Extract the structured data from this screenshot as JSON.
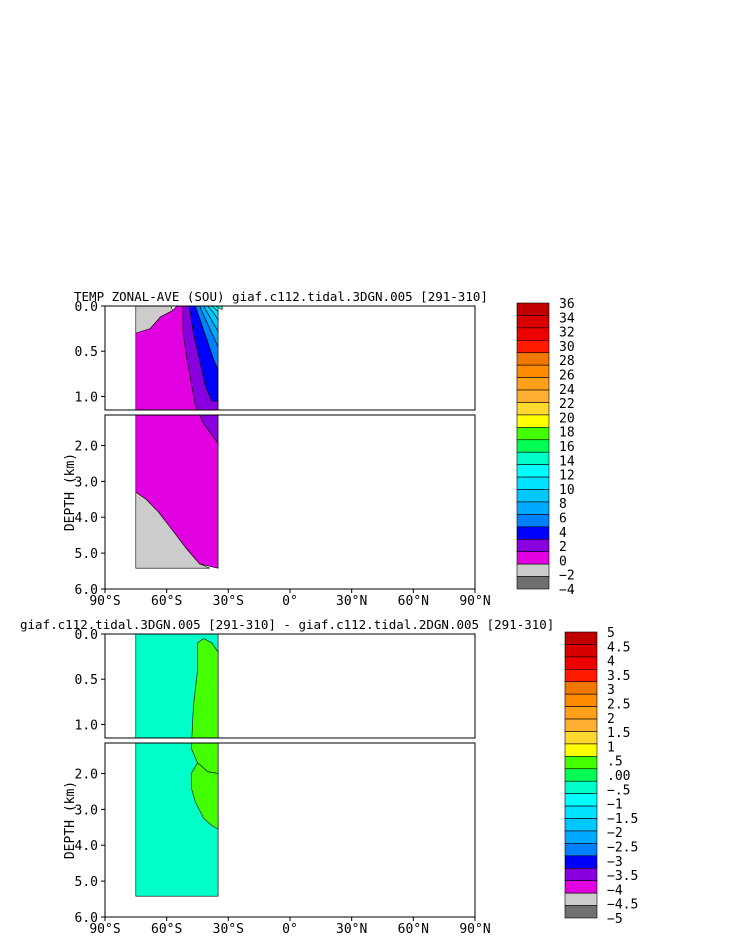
{
  "chart_data": [
    {
      "type": "contour",
      "title": "TEMP ZONAL-AVE (SOU) giaf.c112.tidal.3DGN.005 [291-310]",
      "ylabel": "DEPTH (km)",
      "xlim": [
        -90,
        90
      ],
      "ylim": [
        6.0,
        0.0
      ],
      "y_break": [
        1.15,
        1.15
      ],
      "x_tick_labels": [
        "90°S",
        "60°S",
        "30°S",
        "0°",
        "30°N",
        "60°N",
        "90°N"
      ],
      "y_tick_labels_upper": [
        "0.0",
        "0.5",
        "1.0"
      ],
      "y_tick_labels_lower": [
        "2.0",
        "3.0",
        "4.0",
        "5.0",
        "6.0"
      ],
      "colorbar_labels": [
        "36",
        "34",
        "32",
        "30",
        "28",
        "26",
        "24",
        "22",
        "20",
        "18",
        "16",
        "14",
        "12",
        "10",
        "8",
        "6",
        "4",
        "2",
        "0",
        "−2",
        "−4"
      ],
      "colorbar_colors": [
        "#c00000",
        "#d80000",
        "#ee0000",
        "#ff1a00",
        "#f07800",
        "#ff8c00",
        "#ff9f1a",
        "#ffb030",
        "#ffd830",
        "#ffff00",
        "#44ff00",
        "#00ff55",
        "#00ffc8",
        "#00ffff",
        "#00e0ff",
        "#00c8ff",
        "#00aaff",
        "#0080ff",
        "#0000ff",
        "#8800dd",
        "#e000e0",
        "#cccccc",
        "#707070"
      ],
      "regions": [
        {
          "name": "-2 to 0",
          "color": "#cccccc",
          "points": [
            [
              -75,
              0
            ],
            [
              -58,
              0
            ],
            [
              -57,
              0.05
            ],
            [
              -63,
              0.12
            ],
            [
              -68,
              0.25
            ],
            [
              -75,
              0.32
            ]
          ]
        },
        {
          "name": "-2 to 0 deep",
          "color": "#cccccc",
          "points": [
            [
              -75,
              3.3
            ],
            [
              -70,
              3.5
            ],
            [
              -64,
              3.85
            ],
            [
              -58,
              4.3
            ],
            [
              -50,
              4.9
            ],
            [
              -44,
              5.3
            ],
            [
              -39,
              5.42
            ],
            [
              -39,
              5.42
            ],
            [
              -75,
              5.42
            ]
          ]
        },
        {
          "name": "0 to 2",
          "color": "#e000e0",
          "points": [
            [
              -75,
              0.3
            ],
            [
              -68,
              0.25
            ],
            [
              -63,
              0.12
            ],
            [
              -57,
              0.05
            ],
            [
              -55,
              0
            ],
            [
              -52,
              0
            ],
            [
              -52,
              0.3
            ],
            [
              -50,
              0.6
            ],
            [
              -46,
              1.1
            ],
            [
              -42,
              1.4
            ],
            [
              -38,
              1.7
            ],
            [
              -35,
              1.95
            ],
            [
              -35,
              5.42
            ],
            [
              -44,
              5.3
            ],
            [
              -50,
              4.9
            ],
            [
              -58,
              4.3
            ],
            [
              -64,
              3.85
            ],
            [
              -70,
              3.5
            ],
            [
              -75,
              3.3
            ]
          ]
        },
        {
          "name": "2 to 4",
          "color": "#8800dd",
          "points": [
            [
              -52,
              0
            ],
            [
              -49,
              0
            ],
            [
              -47,
              0.3
            ],
            [
              -44,
              0.6
            ],
            [
              -41,
              0.9
            ],
            [
              -38,
              1.05
            ],
            [
              -35,
              1.05
            ],
            [
              -35,
              1.95
            ],
            [
              -38,
              1.7
            ],
            [
              -42,
              1.4
            ],
            [
              -46,
              1.1
            ],
            [
              -50,
              0.6
            ],
            [
              -52,
              0.3
            ]
          ]
        },
        {
          "name": "4 to 6",
          "color": "#0000ff",
          "points": [
            [
              -49,
              0
            ],
            [
              -46,
              0
            ],
            [
              -43,
              0.2
            ],
            [
              -40,
              0.4
            ],
            [
              -37,
              0.6
            ],
            [
              -35,
              0.7
            ],
            [
              -35,
              1.05
            ],
            [
              -38,
              1.05
            ],
            [
              -41,
              0.9
            ],
            [
              -44,
              0.6
            ],
            [
              -47,
              0.3
            ]
          ]
        },
        {
          "name": "6 to 8",
          "color": "#0080ff",
          "points": [
            [
              -46,
              0
            ],
            [
              -44,
              0
            ],
            [
              -41,
              0.15
            ],
            [
              -38,
              0.3
            ],
            [
              -35,
              0.45
            ],
            [
              -35,
              0.7
            ],
            [
              -37,
              0.6
            ],
            [
              -40,
              0.4
            ],
            [
              -43,
              0.2
            ]
          ]
        },
        {
          "name": "8 to 10",
          "color": "#00aaff",
          "points": [
            [
              -44,
              0
            ],
            [
              -42,
              0
            ],
            [
              -39,
              0.12
            ],
            [
              -35,
              0.28
            ],
            [
              -35,
              0.45
            ],
            [
              -38,
              0.3
            ],
            [
              -41,
              0.15
            ]
          ]
        },
        {
          "name": "10 to 12",
          "color": "#00c8ff",
          "points": [
            [
              -42,
              0
            ],
            [
              -40,
              0
            ],
            [
              -37,
              0.08
            ],
            [
              -35,
              0.15
            ],
            [
              -35,
              0.28
            ],
            [
              -39,
              0.12
            ]
          ]
        },
        {
          "name": "12 to 14",
          "color": "#00e0ff",
          "points": [
            [
              -40,
              0
            ],
            [
              -38,
              0
            ],
            [
              -35,
              0.06
            ],
            [
              -35,
              0.15
            ],
            [
              -37,
              0.08
            ]
          ]
        },
        {
          "name": "14 to 16",
          "color": "#00ffff",
          "points": [
            [
              -38,
              0
            ],
            [
              -36,
              0
            ],
            [
              -35,
              0.02
            ],
            [
              -35,
              0.06
            ]
          ]
        },
        {
          "name": "16 to 18",
          "color": "#00ffc8",
          "points": [
            [
              -36,
              0
            ],
            [
              -33,
              0
            ],
            [
              -33,
              0.04
            ],
            [
              -35,
              0.02
            ]
          ]
        }
      ]
    },
    {
      "type": "contour",
      "title": "giaf.c112.tidal.3DGN.005 [291-310] - giaf.c112.tidal.2DGN.005 [291-310]",
      "ylabel": "DEPTH (km)",
      "xlim": [
        -90,
        90
      ],
      "ylim": [
        6.0,
        0.0
      ],
      "y_break": [
        1.15,
        1.15
      ],
      "x_tick_labels": [
        "90°S",
        "60°S",
        "30°S",
        "0°",
        "30°N",
        "60°N",
        "90°N"
      ],
      "y_tick_labels_upper": [
        "0.0",
        "0.5",
        "1.0"
      ],
      "y_tick_labels_lower": [
        "2.0",
        "3.0",
        "4.0",
        "5.0",
        "6.0"
      ],
      "colorbar_labels": [
        "5",
        "4.5",
        "4",
        "3.5",
        "3",
        "2.5",
        "2",
        "1.5",
        "1",
        ".5",
        ".00",
        "−.5",
        "−1",
        "−1.5",
        "−2",
        "−2.5",
        "−3",
        "−3.5",
        "−4",
        "−4.5",
        "−5"
      ],
      "colorbar_colors": [
        "#c00000",
        "#d80000",
        "#ee0000",
        "#ff1a00",
        "#f07800",
        "#ff8c00",
        "#ff9f1a",
        "#ffb030",
        "#ffd830",
        "#ffff00",
        "#44ff00",
        "#00ff55",
        "#00ffc8",
        "#00ffff",
        "#00e0ff",
        "#00c8ff",
        "#00aaff",
        "#0080ff",
        "#0000ff",
        "#8800dd",
        "#e000e0",
        "#cccccc",
        "#707070"
      ],
      "regions": [
        {
          "name": "-.5 to .00",
          "color": "#00ffc8",
          "points": [
            [
              -75,
              0
            ],
            [
              -35,
              0
            ],
            [
              -35,
              5.42
            ],
            [
              -75,
              5.42
            ]
          ]
        },
        {
          "name": ".00 to .5 upper",
          "color": "#44ff00",
          "points": [
            [
              -45,
              0.1
            ],
            [
              -42,
              0.05
            ],
            [
              -38,
              0.1
            ],
            [
              -35,
              0.2
            ],
            [
              -35,
              2.0
            ],
            [
              -40,
              1.95
            ],
            [
              -45,
              1.7
            ],
            [
              -48,
              1.3
            ],
            [
              -47,
              0.8
            ],
            [
              -45,
              0.4
            ]
          ]
        },
        {
          "name": ".00 to .5 deep",
          "color": "#44ff00",
          "points": [
            [
              -45,
              1.7
            ],
            [
              -40,
              1.95
            ],
            [
              -35,
              2.0
            ],
            [
              -35,
              3.55
            ],
            [
              -38,
              3.45
            ],
            [
              -42,
              3.25
            ],
            [
              -46,
              2.8
            ],
            [
              -48,
              2.4
            ],
            [
              -48,
              2.0
            ]
          ]
        }
      ]
    }
  ]
}
